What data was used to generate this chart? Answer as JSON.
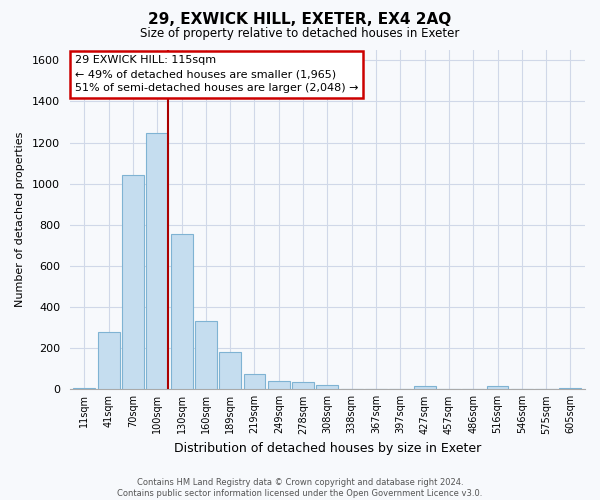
{
  "title": "29, EXWICK HILL, EXETER, EX4 2AQ",
  "subtitle": "Size of property relative to detached houses in Exeter",
  "xlabel": "Distribution of detached houses by size in Exeter",
  "ylabel": "Number of detached properties",
  "bar_color": "#c5ddef",
  "bar_edge_color": "#7fb3d3",
  "categories": [
    "11sqm",
    "41sqm",
    "70sqm",
    "100sqm",
    "130sqm",
    "160sqm",
    "189sqm",
    "219sqm",
    "249sqm",
    "278sqm",
    "308sqm",
    "338sqm",
    "367sqm",
    "397sqm",
    "427sqm",
    "457sqm",
    "486sqm",
    "516sqm",
    "546sqm",
    "575sqm",
    "605sqm"
  ],
  "values": [
    5,
    278,
    1040,
    1245,
    755,
    330,
    180,
    75,
    40,
    35,
    20,
    0,
    0,
    0,
    15,
    0,
    0,
    15,
    0,
    0,
    8
  ],
  "ylim": [
    0,
    1650
  ],
  "yticks": [
    0,
    200,
    400,
    600,
    800,
    1000,
    1200,
    1400,
    1600
  ],
  "vline_pos": 3.45,
  "vline_color": "#aa0000",
  "background_color": "#f7f9fc",
  "grid_color": "#d0d8e8",
  "annotation_title": "29 EXWICK HILL: 115sqm",
  "annotation_line1": "← 49% of detached houses are smaller (1,965)",
  "annotation_line2": "51% of semi-detached houses are larger (2,048) →",
  "footer_line1": "Contains HM Land Registry data © Crown copyright and database right 2024.",
  "footer_line2": "Contains public sector information licensed under the Open Government Licence v3.0."
}
